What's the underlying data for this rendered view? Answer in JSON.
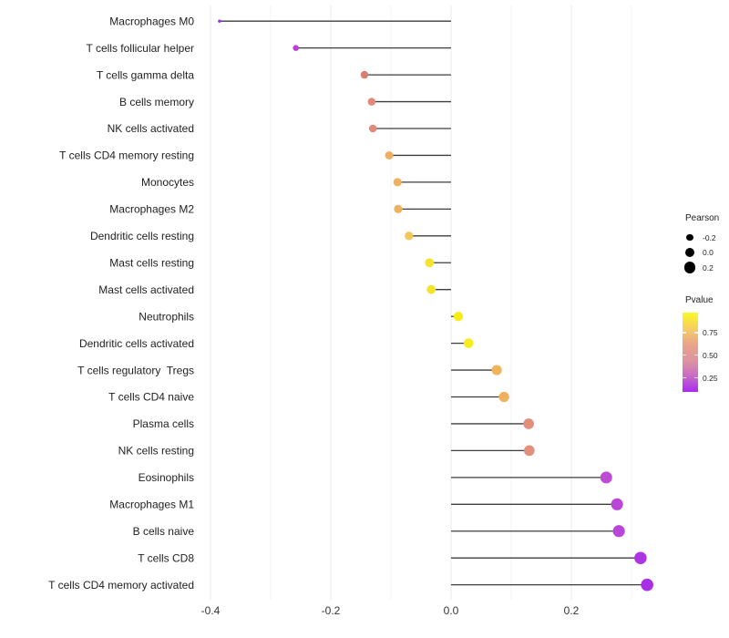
{
  "figure": {
    "background": "#ffffff"
  },
  "chart_data": {
    "type": "lollipop",
    "title": "",
    "xlabel": "",
    "ylabel": "",
    "orientation": "horizontal",
    "baseline": 0.0,
    "grid": "vertical-only",
    "legend_position": "right",
    "x_axis": {
      "major_ticks": [
        -0.4,
        -0.2,
        0.0,
        0.2
      ],
      "major_tick_labels": [
        "-0.4",
        "-0.2",
        "0.0",
        "0.2"
      ],
      "minor_ticks": [
        -0.3,
        -0.1,
        0.1,
        0.3
      ],
      "range": [
        -0.42,
        0.34
      ]
    },
    "points": [
      {
        "label": "Macrophages M0",
        "pearson": -0.385,
        "pvalue_est": 0.02,
        "color": "#9B30E5"
      },
      {
        "label": "T cells follicular helper",
        "pearson": -0.258,
        "pvalue_est": 0.15,
        "color": "#BB3FD6"
      },
      {
        "label": "T cells gamma delta",
        "pearson": -0.144,
        "pvalue_est": 0.5,
        "color": "#DB7C70"
      },
      {
        "label": "B cells memory",
        "pearson": -0.132,
        "pvalue_est": 0.55,
        "color": "#E18A7A"
      },
      {
        "label": "NK cells activated",
        "pearson": -0.13,
        "pvalue_est": 0.55,
        "color": "#E18A7A"
      },
      {
        "label": "T cells CD4 memory resting",
        "pearson": -0.103,
        "pvalue_est": 0.74,
        "color": "#EFAE62"
      },
      {
        "label": "Monocytes",
        "pearson": -0.089,
        "pvalue_est": 0.75,
        "color": "#EFB160"
      },
      {
        "label": "Macrophages M2",
        "pearson": -0.088,
        "pvalue_est": 0.76,
        "color": "#EEB25E"
      },
      {
        "label": "Dendritic cells resting",
        "pearson": -0.07,
        "pvalue_est": 0.83,
        "color": "#F3C75A"
      },
      {
        "label": "Mast cells resting",
        "pearson": -0.036,
        "pvalue_est": 0.93,
        "color": "#F6E42C"
      },
      {
        "label": "Mast cells activated",
        "pearson": -0.033,
        "pvalue_est": 0.93,
        "color": "#F6E42C"
      },
      {
        "label": "Neutrophils",
        "pearson": 0.012,
        "pvalue_est": 0.97,
        "color": "#F9ED17"
      },
      {
        "label": "Dendritic cells activated",
        "pearson": 0.029,
        "pvalue_est": 0.96,
        "color": "#F8EB1F"
      },
      {
        "label": "T cells regulatory  Tregs",
        "pearson": 0.076,
        "pvalue_est": 0.76,
        "color": "#F0B45D"
      },
      {
        "label": "T cells CD4 naive",
        "pearson": 0.088,
        "pvalue_est": 0.75,
        "color": "#F0B15E"
      },
      {
        "label": "Plasma cells",
        "pearson": 0.129,
        "pvalue_est": 0.56,
        "color": "#E28F7C"
      },
      {
        "label": "NK cells resting",
        "pearson": 0.13,
        "pvalue_est": 0.56,
        "color": "#E28F7C"
      },
      {
        "label": "Eosinophils",
        "pearson": 0.258,
        "pvalue_est": 0.22,
        "color": "#BC4CD4"
      },
      {
        "label": "Macrophages M1",
        "pearson": 0.276,
        "pvalue_est": 0.19,
        "color": "#BA46D8"
      },
      {
        "label": "B cells naive",
        "pearson": 0.279,
        "pvalue_est": 0.19,
        "color": "#BA46D8"
      },
      {
        "label": "T cells CD8",
        "pearson": 0.315,
        "pvalue_est": 0.09,
        "color": "#AC34E2"
      },
      {
        "label": "T cells CD4 memory activated",
        "pearson": 0.326,
        "pvalue_est": 0.07,
        "color": "#A92FE5"
      }
    ],
    "size_legend": {
      "title": "Pearson",
      "entries": [
        {
          "label": "-0.2",
          "value": -0.2
        },
        {
          "label": "0.0",
          "value": 0.0
        },
        {
          "label": "0.2",
          "value": 0.2
        }
      ],
      "dot_color": "#000000"
    },
    "color_legend": {
      "title": "Pvalue",
      "tick_labels": [
        "0.75",
        "0.50",
        "0.25"
      ],
      "tick_values": [
        0.75,
        0.5,
        0.25
      ],
      "gradient_top_to_bottom": [
        "#FBF823",
        "#F6CE64",
        "#E8A489",
        "#DE94A0",
        "#C96BC4",
        "#A82BF0"
      ]
    },
    "styles": {
      "stem_color": "#3D3D3D",
      "grid_major_color": "#EBEBEB",
      "grid_minor_color": "#F4F4F4",
      "axis_tick_text_color": "#333333",
      "category_text_color": "#1F1F1F"
    }
  }
}
